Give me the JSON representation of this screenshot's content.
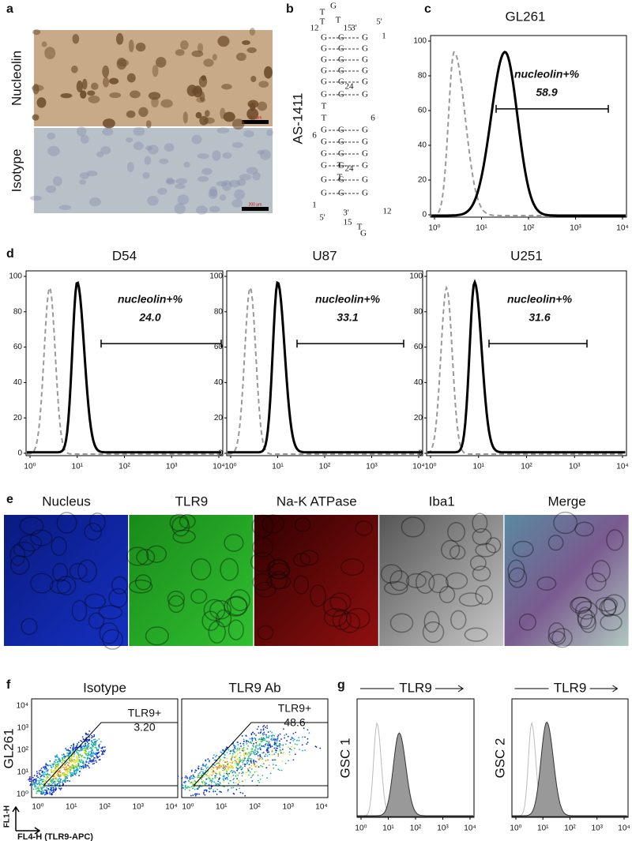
{
  "a": {
    "letter": "a",
    "rows": [
      "Nucleolin",
      "Isotype"
    ],
    "scale_bar": "200 μm"
  },
  "b": {
    "letter": "b",
    "label": "AS-1411",
    "glyphs": [
      "G",
      "T",
      "T",
      "T",
      "12",
      "15",
      "3'",
      "5'",
      "1",
      "24",
      "T",
      "T",
      "6",
      "6",
      "T",
      "T",
      "24",
      "1",
      "5'",
      "3'",
      "15",
      "T",
      "G",
      "12"
    ],
    "grid": [
      "G",
      "G",
      "G",
      "G",
      "G",
      "G",
      "G",
      "G",
      "G",
      "G",
      "G",
      "G",
      "G",
      "G",
      "G",
      "G",
      "G",
      "G",
      "G",
      "G",
      "G",
      "G",
      "G",
      "G",
      "G",
      "G",
      "G",
      "G",
      "G",
      "G",
      "G",
      "G",
      "G",
      "G",
      "G",
      "G"
    ]
  },
  "c": {
    "letter": "c",
    "title": "GL261",
    "annotation": "nucleolin+%",
    "value": "58.9",
    "yticks": [
      0,
      20,
      40,
      60,
      80,
      100
    ],
    "xtick_labels": [
      "10⁰",
      "10¹",
      "10²",
      "10³",
      "10⁴"
    ]
  },
  "d": {
    "letter": "d",
    "yticks": [
      0,
      20,
      40,
      60,
      80,
      100
    ],
    "xtick_labels": [
      "10⁰",
      "10¹",
      "10²",
      "10³",
      "10⁴"
    ],
    "panels": [
      {
        "title": "D54",
        "annotation": "nucleolin+%",
        "value": "24.0"
      },
      {
        "title": "U87",
        "annotation": "nucleolin+%",
        "value": "33.1"
      },
      {
        "title": "U251",
        "annotation": "nucleolin+%",
        "value": "31.6"
      }
    ]
  },
  "e": {
    "letter": "e",
    "channels": [
      "Nucleus",
      "TLR9",
      "Na-K ATPase",
      "Iba1",
      "Merge"
    ]
  },
  "f": {
    "letter": "f",
    "row_label": "GL261",
    "y_axis": "FL1-H",
    "x_axis": "FL4-H (TLR9-APC)",
    "panels": [
      {
        "title": "Isotype",
        "gate_label": "TLR9+",
        "gate_value": "3.20"
      },
      {
        "title": "TLR9 Ab",
        "gate_label": "TLR9+",
        "gate_value": "48.6"
      }
    ],
    "ytick_labels": [
      "10⁰",
      "10¹",
      "10²",
      "10³",
      "10⁴"
    ],
    "xtick_labels": [
      "10⁰",
      "10¹",
      "10²",
      "10³",
      "10⁴"
    ]
  },
  "g": {
    "letter": "g",
    "panels": [
      {
        "marker": "TLR9",
        "label": "GSC 1"
      },
      {
        "marker": "TLR9",
        "label": "GSC 2"
      }
    ],
    "xtick_labels": [
      "10⁰",
      "10¹",
      "10²",
      "10³",
      "10⁴"
    ]
  }
}
